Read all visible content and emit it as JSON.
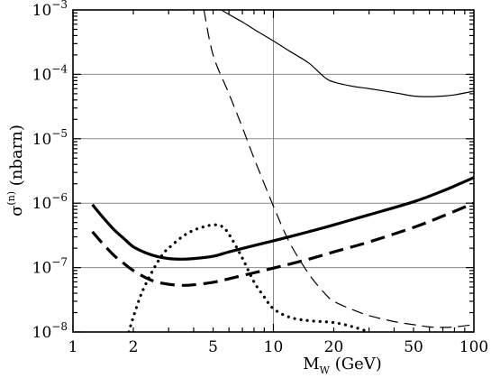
{
  "chart_data": {
    "type": "line",
    "title": "",
    "xlabel": {
      "base": "M",
      "sub": "W",
      "unit": " (GeV)"
    },
    "ylabel": {
      "symbol": "σ",
      "sup": "(n)",
      "unit": " (nbarn)"
    },
    "xscale": "log",
    "yscale": "log",
    "xlim": [
      1,
      100
    ],
    "ylim": [
      1e-08,
      0.001
    ],
    "grid": true,
    "x_ticks": [
      {
        "value": 1,
        "label": "1"
      },
      {
        "value": 2,
        "label": "2"
      },
      {
        "value": 5,
        "label": "5"
      },
      {
        "value": 10,
        "label": "10"
      },
      {
        "value": 20,
        "label": "20"
      },
      {
        "value": 50,
        "label": "50"
      },
      {
        "value": 100,
        "label": "100"
      }
    ],
    "y_ticks": [
      {
        "value": 1e-08,
        "base": "10",
        "exp": "−8"
      },
      {
        "value": 1e-07,
        "base": "10",
        "exp": "−7"
      },
      {
        "value": 1e-06,
        "base": "10",
        "exp": "−6"
      },
      {
        "value": 1e-05,
        "base": "10",
        "exp": "−5"
      },
      {
        "value": 0.0001,
        "base": "10",
        "exp": "−4"
      },
      {
        "value": 0.001,
        "base": "10",
        "exp": "−3"
      }
    ],
    "series": [
      {
        "style": "thick-solid",
        "x": [
          1.25,
          1.4,
          1.6,
          1.8,
          2.0,
          2.3,
          2.6,
          3.0,
          3.5,
          4.0,
          5.0,
          6.0,
          8.0,
          10,
          15,
          20,
          30,
          50,
          70,
          100
        ],
        "y": [
          9.5e-07,
          6.2e-07,
          3.9e-07,
          2.8e-07,
          2.1e-07,
          1.7e-07,
          1.5e-07,
          1.38e-07,
          1.35e-07,
          1.38e-07,
          1.5e-07,
          1.75e-07,
          2.2e-07,
          2.6e-07,
          3.6e-07,
          4.6e-07,
          6.6e-07,
          1.05e-06,
          1.55e-06,
          2.5e-06
        ]
      },
      {
        "style": "thick-dashed",
        "x": [
          1.25,
          1.4,
          1.6,
          1.8,
          2.0,
          2.3,
          2.6,
          3.0,
          3.5,
          4.0,
          5.0,
          6.0,
          8.0,
          10,
          15,
          20,
          30,
          50,
          70,
          100
        ],
        "y": [
          3.6e-07,
          2.4e-07,
          1.55e-07,
          1.15e-07,
          9e-08,
          7e-08,
          6e-08,
          5.5e-08,
          5.3e-08,
          5.4e-08,
          5.9e-08,
          6.7e-08,
          8.3e-08,
          9.8e-08,
          1.35e-07,
          1.75e-07,
          2.5e-07,
          4.2e-07,
          6.3e-07,
          1e-06
        ]
      },
      {
        "style": "thin-solid",
        "x": [
          5.5,
          6.0,
          7.0,
          8.0,
          10,
          12,
          15,
          18,
          20,
          25,
          30,
          40,
          50,
          60,
          70,
          80,
          100
        ],
        "y": [
          0.001,
          0.00085,
          0.00065,
          0.0005,
          0.00033,
          0.00023,
          0.00015,
          9e-05,
          7.6e-05,
          6.5e-05,
          6e-05,
          5.2e-05,
          4.6e-05,
          4.5e-05,
          4.6e-05,
          4.8e-05,
          5.5e-05
        ]
      },
      {
        "style": "thin-dashed",
        "x": [
          4.5,
          5.0,
          6.0,
          7.0,
          8.0,
          10,
          12,
          15,
          18,
          20,
          25,
          30,
          40,
          50,
          60,
          70,
          80,
          100
        ],
        "y": [
          0.001,
          0.0002,
          5e-05,
          1.5e-05,
          5e-06,
          9e-07,
          2.5e-07,
          8e-08,
          4e-08,
          3e-08,
          2.2e-08,
          1.8e-08,
          1.45e-08,
          1.3e-08,
          1.2e-08,
          1.18e-08,
          1.2e-08,
          1.3e-08
        ]
      },
      {
        "style": "dotted",
        "x": [
          1.9,
          2.0,
          2.2,
          2.5,
          2.8,
          3.0,
          3.5,
          4.0,
          4.5,
          5.0,
          5.5,
          6.0,
          7.0,
          8.0,
          9.0,
          10,
          12,
          15,
          20,
          25,
          30
        ],
        "y": [
          1e-08,
          1.7e-08,
          4e-08,
          9e-08,
          1.6e-07,
          2e-07,
          3e-07,
          3.8e-07,
          4.3e-07,
          4.6e-07,
          4.4e-07,
          3.3e-07,
          1.4e-07,
          6e-08,
          3.5e-08,
          2.3e-08,
          1.7e-08,
          1.5e-08,
          1.4e-08,
          1.2e-08,
          1e-08
        ]
      }
    ]
  }
}
